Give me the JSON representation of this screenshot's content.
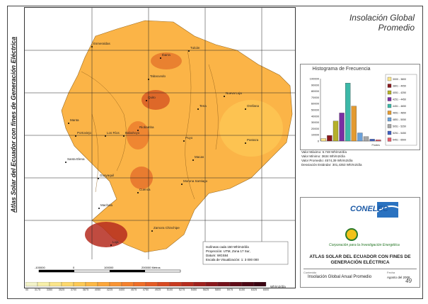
{
  "side_title": "Atlas Solar del Ecuador con fines de Generación Eléctrica",
  "map_title_line1": "Insolación Global",
  "map_title_line2": "Promedio",
  "cities": [
    "Esmeraldas",
    "Ibarra",
    "Quito",
    "Tulcán",
    "Tabacundo",
    "Manta",
    "Portoviejo",
    "Tena",
    "Nueva Loja",
    "Orellana",
    "Los Ríos",
    "Babahoyo",
    "Riobamba",
    "Santa Elena",
    "Guayaquil",
    "Cuenca",
    "Macas",
    "Puyo",
    "Pastaza",
    "Morona Santiago",
    "Loja",
    "Zamora Chinchipe",
    "Machala"
  ],
  "map_note": [
    "Isolíneas cada 150 Wh/m2/día",
    "Proyección: UTM, Zona 17 Sur,",
    "Datum: WGS84",
    "Escala de Visualización: 1: 3 000 000"
  ],
  "scale_labels": [
    "-100000",
    "0",
    "100000",
    "200000 Metros"
  ],
  "legend": {
    "unit": "Wh/m2/día",
    "labels": [
      "3000",
      "3175",
      "3350",
      "3525",
      "3700",
      "3875",
      "4050",
      "4225",
      "4400",
      "4575",
      "4750",
      "4925",
      "5100",
      "5275",
      "5450",
      "5625",
      "5800",
      "5975",
      "6150",
      "6325",
      "6500"
    ],
    "colors": [
      "#f2f2c8",
      "#f7efa8",
      "#fbe58a",
      "#fdd86c",
      "#fdc955",
      "#fdb844",
      "#fca63a",
      "#f99433",
      "#f5812d",
      "#ef6e28",
      "#e55c25",
      "#d84a22",
      "#c83a20",
      "#b52c1f",
      "#a0211e",
      "#8a181c",
      "#74111a",
      "#600c18",
      "#4c0815",
      "#3a0512"
    ]
  },
  "histogram": {
    "title": "Histograma de Frecuencia",
    "y_ticks": [
      "0",
      "10000",
      "20000",
      "30000",
      "40000",
      "50000",
      "60000",
      "70000",
      "80000",
      "90000",
      "100000"
    ],
    "x_label": "Píxeles",
    "legend_items": [
      "3000 - 3800",
      "3801 - 4050",
      "4051 - 4250",
      "4251 - 4450",
      "4451 - 4650",
      "4651 - 4850",
      "4851 - 5050",
      "5051 - 5250",
      "5251 - 5450",
      "5451 - 6500"
    ]
  },
  "chart_data": {
    "type": "bar",
    "title": "Histograma de Frecuencia",
    "categories": [
      "3000 - 3800",
      "3801 - 4050",
      "4051 - 4250",
      "4251 - 4450",
      "4451 - 4650",
      "4651 - 4850",
      "4851 - 5050",
      "5051 - 5250",
      "5251 - 5450",
      "5451 - 6500"
    ],
    "values": [
      4000,
      9000,
      32000,
      45000,
      93000,
      56000,
      13000,
      7000,
      3000,
      2000
    ],
    "colors": [
      "#fbe58a",
      "#8a181c",
      "#b5b02a",
      "#7a2ea3",
      "#3cb8a8",
      "#e39a30",
      "#6aa0d8",
      "#a6a6a6",
      "#4060c0",
      "#e45a6a"
    ],
    "ylabel": "Píxeles",
    "ylim": [
      0,
      100000
    ]
  },
  "stats": [
    "Valor Máximo: 6.748 Wh/m2/día",
    "Valor Mínimo: 3634 Wh/m2/día",
    "Valor Promedio: 4574,39 Wh/m2/día",
    "Desviación Estándar: 301,4353 Wh/m2/día"
  ],
  "logo": {
    "brand": "CONELEC",
    "org": "Corporación para la Investigación Energética",
    "atlas_title": "ATLAS SOLAR DEL ECUADOR CON FINES DE GENERACIÓN ELÉCTRICA",
    "contenido_label": "Contenido",
    "contenido_value": "Insolación Global Anual Promedio",
    "fecha_label": "Fecha",
    "fecha_value": "Agosto del 2008"
  },
  "page_number": "49"
}
